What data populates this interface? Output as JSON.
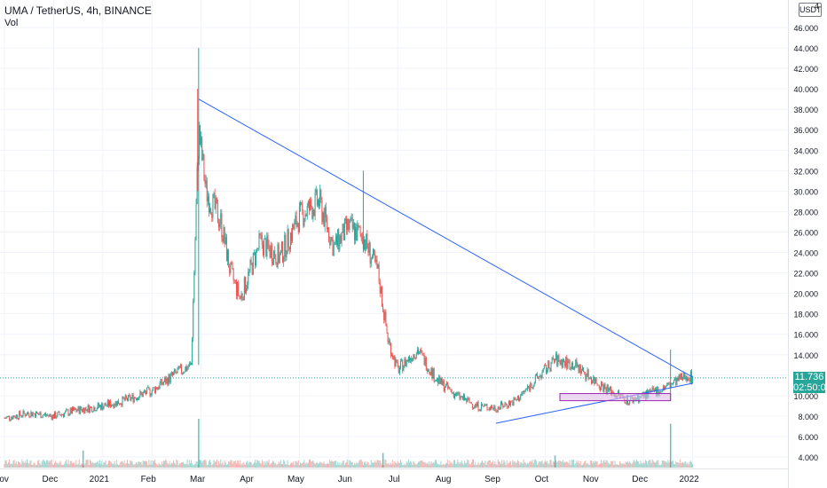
{
  "header": {
    "title": "UMA / TetherUS, 4h, BINANCE",
    "volume_label": "Vol",
    "currency_badge": "USDT",
    "top_right_digit": "4"
  },
  "price_label": {
    "price": "11.736",
    "countdown": "02:50:05",
    "color": "#26a69a"
  },
  "colors": {
    "up": "#26a69a",
    "down": "#ef5350",
    "trendline": "#2962ff",
    "zone_fill": "#e1bee7",
    "zone_border": "#9c27b0",
    "grid": "#f0f3fa"
  },
  "chart_data": {
    "type": "candlestick",
    "symbol": "UMA / TetherUS",
    "interval": "4h",
    "exchange": "BINANCE",
    "y_ticks": [
      "4.000",
      "6.000",
      "8.000",
      "10.000",
      "12.000",
      "14.000",
      "16.000",
      "18.000",
      "20.000",
      "22.000",
      "24.000",
      "26.000",
      "28.000",
      "30.000",
      "32.000",
      "34.000",
      "36.000",
      "38.000",
      "40.000",
      "42.000",
      "44.000",
      "46.000"
    ],
    "x_ticks": [
      "Nov",
      "Dec",
      "2021",
      "Feb",
      "Mar",
      "Apr",
      "May",
      "Jun",
      "Jul",
      "Aug",
      "Sep",
      "Oct",
      "Nov",
      "Dec",
      "2022"
    ],
    "ylim": [
      3,
      48
    ],
    "last_price": 11.736,
    "price_path": [
      {
        "t": 0.0,
        "p": 7.8
      },
      {
        "t": 0.5,
        "p": 8.3
      },
      {
        "t": 1.0,
        "p": 8.0
      },
      {
        "t": 1.5,
        "p": 8.6
      },
      {
        "t": 2.0,
        "p": 9.0
      },
      {
        "t": 2.5,
        "p": 9.6
      },
      {
        "t": 3.0,
        "p": 10.5
      },
      {
        "t": 3.3,
        "p": 11.5
      },
      {
        "t": 3.5,
        "p": 12.2
      },
      {
        "t": 3.8,
        "p": 13.0
      },
      {
        "t": 3.95,
        "p": 36.0
      },
      {
        "t": 4.1,
        "p": 30.0
      },
      {
        "t": 4.4,
        "p": 27.0
      },
      {
        "t": 4.6,
        "p": 22.0
      },
      {
        "t": 4.8,
        "p": 19.5
      },
      {
        "t": 5.2,
        "p": 25.0
      },
      {
        "t": 5.6,
        "p": 23.5
      },
      {
        "t": 6.0,
        "p": 27.5
      },
      {
        "t": 6.4,
        "p": 29.0
      },
      {
        "t": 6.7,
        "p": 24.5
      },
      {
        "t": 7.0,
        "p": 26.5
      },
      {
        "t": 7.3,
        "p": 25.5
      },
      {
        "t": 7.6,
        "p": 22.0
      },
      {
        "t": 7.8,
        "p": 15.5
      },
      {
        "t": 8.0,
        "p": 12.5
      },
      {
        "t": 8.4,
        "p": 14.5
      },
      {
        "t": 8.8,
        "p": 11.5
      },
      {
        "t": 9.2,
        "p": 10.0
      },
      {
        "t": 9.6,
        "p": 9.0
      },
      {
        "t": 10.0,
        "p": 8.8
      },
      {
        "t": 10.4,
        "p": 9.5
      },
      {
        "t": 10.8,
        "p": 11.5
      },
      {
        "t": 11.2,
        "p": 13.5
      },
      {
        "t": 11.6,
        "p": 13.0
      },
      {
        "t": 12.0,
        "p": 11.5
      },
      {
        "t": 12.3,
        "p": 10.5
      },
      {
        "t": 12.7,
        "p": 9.5
      },
      {
        "t": 13.0,
        "p": 10.0
      },
      {
        "t": 13.3,
        "p": 10.5
      },
      {
        "t": 13.6,
        "p": 11.2
      },
      {
        "t": 13.9,
        "p": 12.0
      },
      {
        "t": 14.0,
        "p": 11.736
      }
    ],
    "volume_spikes": [
      {
        "t": 3.95,
        "v": 1.0
      },
      {
        "t": 1.6,
        "v": 0.35
      },
      {
        "t": 13.55,
        "v": 0.9
      },
      {
        "t": 7.7,
        "v": 0.3
      },
      {
        "t": 11.2,
        "v": 0.25
      }
    ],
    "drawings": {
      "descending_trendline": [
        {
          "t": 3.95,
          "p": 39.0
        },
        {
          "t": 14.0,
          "p": 11.8
        }
      ],
      "ascending_trendline": [
        {
          "t": 10.0,
          "p": 7.3
        },
        {
          "t": 14.0,
          "p": 11.2
        }
      ],
      "support_zone": {
        "t_start": 11.3,
        "t_end": 13.55,
        "p_low": 9.5,
        "p_high": 10.2
      }
    },
    "grid": true,
    "legend": "top-left"
  }
}
